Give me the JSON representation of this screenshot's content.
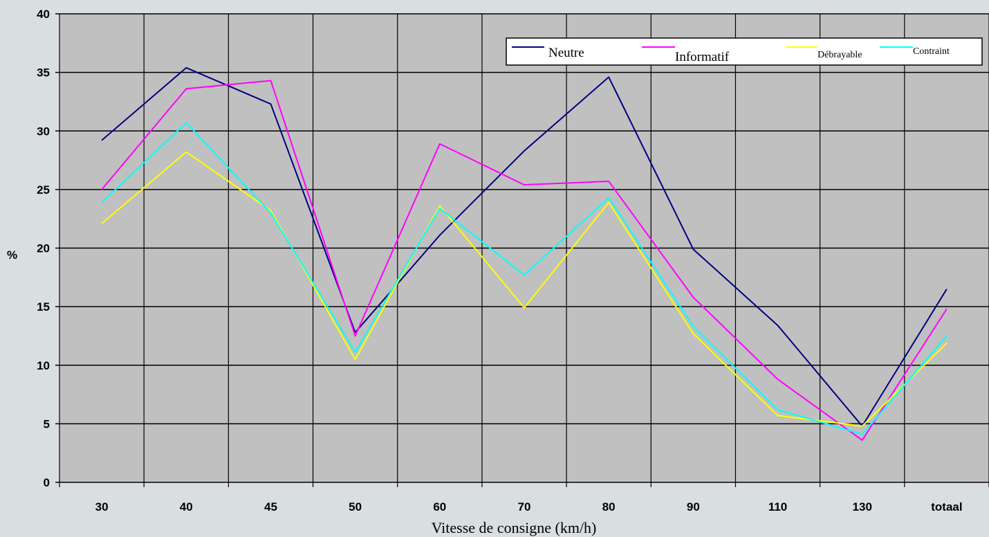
{
  "chart_data": {
    "type": "line",
    "title": "",
    "xlabel": "Vitesse de consigne (km/h)",
    "ylabel": "%",
    "categories": [
      "30",
      "40",
      "45",
      "50",
      "60",
      "70",
      "80",
      "90",
      "110",
      "130",
      "totaal"
    ],
    "ylim": [
      0,
      40
    ],
    "yticks": [
      "0",
      "5",
      "10",
      "15",
      "20",
      "25",
      "30",
      "35",
      "40"
    ],
    "grid": true,
    "legend_position": "top-right",
    "series": [
      {
        "name": "Neutre",
        "color": "#000080",
        "values": [
          29.2,
          35.4,
          32.3,
          12.8,
          21.1,
          28.3,
          34.6,
          19.9,
          13.4,
          4.8,
          16.5
        ]
      },
      {
        "name": "Informatif",
        "color": "#ff00ff",
        "values": [
          25.0,
          33.6,
          34.3,
          12.5,
          28.9,
          25.4,
          25.7,
          15.8,
          8.8,
          3.6,
          14.8
        ]
      },
      {
        "name": "Débrayable",
        "color": "#ffff00",
        "values": [
          22.1,
          28.2,
          23.2,
          10.5,
          23.6,
          14.9,
          23.9,
          12.7,
          5.7,
          4.8,
          11.9
        ]
      },
      {
        "name": "Contraint",
        "color": "#00ffff",
        "values": [
          23.9,
          30.7,
          23.0,
          11.1,
          23.4,
          17.7,
          24.3,
          13.3,
          6.2,
          4.1,
          12.5
        ]
      }
    ]
  }
}
